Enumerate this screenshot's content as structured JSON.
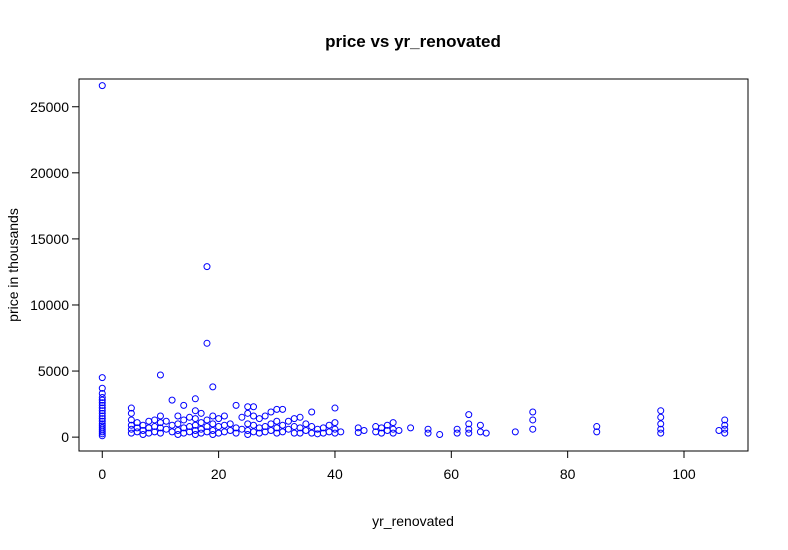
{
  "chart_data": {
    "type": "scatter",
    "title": "price vs yr_renovated",
    "xlabel": "yr_renovated",
    "ylabel": "price in thousands",
    "xlim": [
      -4,
      111
    ],
    "ylim": [
      -1050,
      27100
    ],
    "x_ticks": [
      0,
      20,
      40,
      60,
      80,
      100
    ],
    "y_ticks": [
      0,
      5000,
      10000,
      15000,
      20000,
      25000
    ],
    "grid": false,
    "legend": "none",
    "point_color": "#0000ff",
    "points": [
      {
        "x": 0,
        "y": 26600
      },
      {
        "x": 0,
        "y": 4500
      },
      {
        "x": 0,
        "y": 3700
      },
      {
        "x": 0,
        "y": 3300
      },
      {
        "x": 0,
        "y": 3000
      },
      {
        "x": 0,
        "y": 2800
      },
      {
        "x": 0,
        "y": 2600
      },
      {
        "x": 0,
        "y": 2400
      },
      {
        "x": 0,
        "y": 2200
      },
      {
        "x": 0,
        "y": 2000
      },
      {
        "x": 0,
        "y": 1800
      },
      {
        "x": 0,
        "y": 1600
      },
      {
        "x": 0,
        "y": 1400
      },
      {
        "x": 0,
        "y": 1200
      },
      {
        "x": 0,
        "y": 1000
      },
      {
        "x": 0,
        "y": 850
      },
      {
        "x": 0,
        "y": 700
      },
      {
        "x": 0,
        "y": 550
      },
      {
        "x": 0,
        "y": 400
      },
      {
        "x": 0,
        "y": 250
      },
      {
        "x": 0,
        "y": 100
      },
      {
        "x": 5,
        "y": 2200
      },
      {
        "x": 5,
        "y": 1800
      },
      {
        "x": 5,
        "y": 1300
      },
      {
        "x": 5,
        "y": 900
      },
      {
        "x": 5,
        "y": 600
      },
      {
        "x": 5,
        "y": 300
      },
      {
        "x": 6,
        "y": 1100
      },
      {
        "x": 6,
        "y": 700
      },
      {
        "x": 6,
        "y": 400
      },
      {
        "x": 7,
        "y": 900
      },
      {
        "x": 7,
        "y": 500
      },
      {
        "x": 7,
        "y": 200
      },
      {
        "x": 8,
        "y": 1200
      },
      {
        "x": 8,
        "y": 700
      },
      {
        "x": 8,
        "y": 300
      },
      {
        "x": 9,
        "y": 1300
      },
      {
        "x": 9,
        "y": 800
      },
      {
        "x": 9,
        "y": 400
      },
      {
        "x": 10,
        "y": 4700
      },
      {
        "x": 10,
        "y": 1600
      },
      {
        "x": 10,
        "y": 1100
      },
      {
        "x": 10,
        "y": 700
      },
      {
        "x": 10,
        "y": 300
      },
      {
        "x": 11,
        "y": 1200
      },
      {
        "x": 11,
        "y": 600
      },
      {
        "x": 12,
        "y": 2800
      },
      {
        "x": 12,
        "y": 900
      },
      {
        "x": 12,
        "y": 400
      },
      {
        "x": 13,
        "y": 1600
      },
      {
        "x": 13,
        "y": 1000
      },
      {
        "x": 13,
        "y": 500
      },
      {
        "x": 13,
        "y": 200
      },
      {
        "x": 14,
        "y": 2400
      },
      {
        "x": 14,
        "y": 1300
      },
      {
        "x": 14,
        "y": 700
      },
      {
        "x": 14,
        "y": 300
      },
      {
        "x": 15,
        "y": 1500
      },
      {
        "x": 15,
        "y": 800
      },
      {
        "x": 15,
        "y": 400
      },
      {
        "x": 16,
        "y": 2900
      },
      {
        "x": 16,
        "y": 2000
      },
      {
        "x": 16,
        "y": 1400
      },
      {
        "x": 16,
        "y": 900
      },
      {
        "x": 16,
        "y": 500
      },
      {
        "x": 16,
        "y": 200
      },
      {
        "x": 17,
        "y": 1800
      },
      {
        "x": 17,
        "y": 1100
      },
      {
        "x": 17,
        "y": 600
      },
      {
        "x": 17,
        "y": 300
      },
      {
        "x": 18,
        "y": 12900
      },
      {
        "x": 18,
        "y": 7100
      },
      {
        "x": 18,
        "y": 1300
      },
      {
        "x": 18,
        "y": 800
      },
      {
        "x": 18,
        "y": 400
      },
      {
        "x": 19,
        "y": 3800
      },
      {
        "x": 19,
        "y": 1600
      },
      {
        "x": 19,
        "y": 1000
      },
      {
        "x": 19,
        "y": 500
      },
      {
        "x": 19,
        "y": 200
      },
      {
        "x": 20,
        "y": 1400
      },
      {
        "x": 20,
        "y": 800
      },
      {
        "x": 20,
        "y": 300
      },
      {
        "x": 21,
        "y": 1600
      },
      {
        "x": 21,
        "y": 900
      },
      {
        "x": 21,
        "y": 400
      },
      {
        "x": 22,
        "y": 1000
      },
      {
        "x": 22,
        "y": 500
      },
      {
        "x": 23,
        "y": 2400
      },
      {
        "x": 23,
        "y": 700
      },
      {
        "x": 23,
        "y": 300
      },
      {
        "x": 24,
        "y": 1500
      },
      {
        "x": 24,
        "y": 600
      },
      {
        "x": 25,
        "y": 2300
      },
      {
        "x": 25,
        "y": 1800
      },
      {
        "x": 25,
        "y": 1000
      },
      {
        "x": 25,
        "y": 500
      },
      {
        "x": 25,
        "y": 200
      },
      {
        "x": 26,
        "y": 2300
      },
      {
        "x": 26,
        "y": 1600
      },
      {
        "x": 26,
        "y": 900
      },
      {
        "x": 26,
        "y": 400
      },
      {
        "x": 27,
        "y": 1400
      },
      {
        "x": 27,
        "y": 700
      },
      {
        "x": 27,
        "y": 300
      },
      {
        "x": 28,
        "y": 1600
      },
      {
        "x": 28,
        "y": 800
      },
      {
        "x": 28,
        "y": 400
      },
      {
        "x": 29,
        "y": 1900
      },
      {
        "x": 29,
        "y": 1000
      },
      {
        "x": 29,
        "y": 500
      },
      {
        "x": 30,
        "y": 2100
      },
      {
        "x": 30,
        "y": 1200
      },
      {
        "x": 30,
        "y": 700
      },
      {
        "x": 30,
        "y": 300
      },
      {
        "x": 31,
        "y": 2100
      },
      {
        "x": 31,
        "y": 900
      },
      {
        "x": 31,
        "y": 400
      },
      {
        "x": 32,
        "y": 1200
      },
      {
        "x": 32,
        "y": 600
      },
      {
        "x": 33,
        "y": 1400
      },
      {
        "x": 33,
        "y": 800
      },
      {
        "x": 33,
        "y": 300
      },
      {
        "x": 34,
        "y": 1500
      },
      {
        "x": 34,
        "y": 700
      },
      {
        "x": 34,
        "y": 300
      },
      {
        "x": 35,
        "y": 1000
      },
      {
        "x": 35,
        "y": 500
      },
      {
        "x": 36,
        "y": 1900
      },
      {
        "x": 36,
        "y": 800
      },
      {
        "x": 36,
        "y": 300
      },
      {
        "x": 37,
        "y": 600
      },
      {
        "x": 37,
        "y": 250
      },
      {
        "x": 38,
        "y": 700
      },
      {
        "x": 38,
        "y": 300
      },
      {
        "x": 39,
        "y": 900
      },
      {
        "x": 39,
        "y": 400
      },
      {
        "x": 40,
        "y": 2200
      },
      {
        "x": 40,
        "y": 1100
      },
      {
        "x": 40,
        "y": 600
      },
      {
        "x": 40,
        "y": 300
      },
      {
        "x": 41,
        "y": 400
      },
      {
        "x": 44,
        "y": 700
      },
      {
        "x": 44,
        "y": 350
      },
      {
        "x": 45,
        "y": 500
      },
      {
        "x": 47,
        "y": 800
      },
      {
        "x": 47,
        "y": 400
      },
      {
        "x": 48,
        "y": 700
      },
      {
        "x": 48,
        "y": 300
      },
      {
        "x": 49,
        "y": 900
      },
      {
        "x": 49,
        "y": 500
      },
      {
        "x": 50,
        "y": 1100
      },
      {
        "x": 50,
        "y": 600
      },
      {
        "x": 50,
        "y": 300
      },
      {
        "x": 51,
        "y": 500
      },
      {
        "x": 53,
        "y": 700
      },
      {
        "x": 56,
        "y": 600
      },
      {
        "x": 56,
        "y": 300
      },
      {
        "x": 58,
        "y": 200
      },
      {
        "x": 61,
        "y": 600
      },
      {
        "x": 61,
        "y": 300
      },
      {
        "x": 63,
        "y": 1700
      },
      {
        "x": 63,
        "y": 1000
      },
      {
        "x": 63,
        "y": 600
      },
      {
        "x": 63,
        "y": 300
      },
      {
        "x": 65,
        "y": 900
      },
      {
        "x": 65,
        "y": 400
      },
      {
        "x": 66,
        "y": 300
      },
      {
        "x": 71,
        "y": 400
      },
      {
        "x": 74,
        "y": 1900
      },
      {
        "x": 74,
        "y": 1300
      },
      {
        "x": 74,
        "y": 600
      },
      {
        "x": 85,
        "y": 800
      },
      {
        "x": 85,
        "y": 400
      },
      {
        "x": 96,
        "y": 2000
      },
      {
        "x": 96,
        "y": 1500
      },
      {
        "x": 96,
        "y": 1000
      },
      {
        "x": 96,
        "y": 600
      },
      {
        "x": 96,
        "y": 300
      },
      {
        "x": 106,
        "y": 500
      },
      {
        "x": 107,
        "y": 1300
      },
      {
        "x": 107,
        "y": 900
      },
      {
        "x": 107,
        "y": 600
      },
      {
        "x": 107,
        "y": 300
      }
    ]
  }
}
